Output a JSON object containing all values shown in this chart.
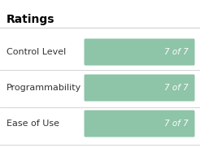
{
  "title": "Ratings",
  "background_color": "#ffffff",
  "categories": [
    "Control Level",
    "Programmability",
    "Ease of Use"
  ],
  "bar_color": "#8ec4a8",
  "bar_text_color": "#ffffff",
  "bar_label": "7 of 7",
  "title_fontsize": 10,
  "label_fontsize": 8,
  "bar_text_fontsize": 7.5,
  "divider_color": "#cccccc",
  "label_color": "#333333",
  "title_color": "#000000",
  "fig_width": 2.46,
  "fig_height": 1.82,
  "dpi": 100
}
